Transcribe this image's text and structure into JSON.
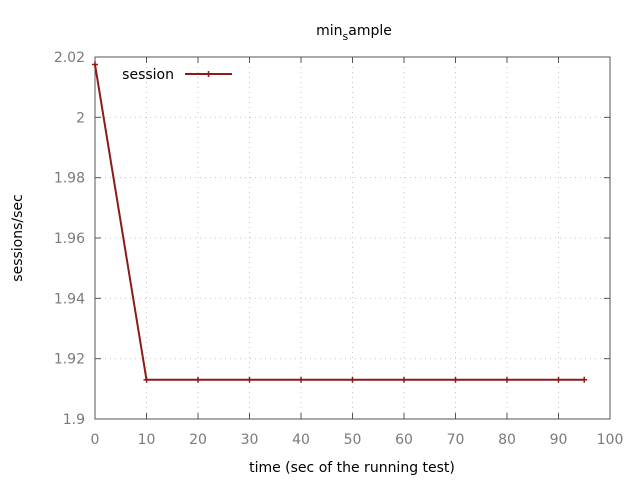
{
  "chart_data": {
    "type": "line",
    "title_main": "min",
    "title_sub": "s",
    "title_rest": "ample",
    "xlabel": "time (sec of the running test)",
    "ylabel": "sessions/sec",
    "xlim": [
      0,
      100
    ],
    "ylim": [
      1.9,
      2.02
    ],
    "xticks": [
      0,
      10,
      20,
      30,
      40,
      50,
      60,
      70,
      80,
      90,
      100
    ],
    "yticks": [
      1.9,
      1.92,
      1.94,
      1.96,
      1.98,
      2,
      2.02
    ],
    "xtick_labels": [
      "0",
      "10",
      "20",
      "30",
      "40",
      "50",
      "60",
      "70",
      "80",
      "90",
      "100"
    ],
    "ytick_labels": [
      "1.9",
      "1.92",
      "1.94",
      "1.96",
      "1.98",
      "2",
      "2.02"
    ],
    "grid": true,
    "legend_position": "top-left",
    "series": [
      {
        "name": "session",
        "color": "#8b1a1a",
        "x": [
          0,
          10,
          20,
          30,
          40,
          50,
          60,
          70,
          80,
          90,
          95
        ],
        "y": [
          2.0175,
          1.913,
          1.913,
          1.913,
          1.913,
          1.913,
          1.913,
          1.913,
          1.913,
          1.913,
          1.913
        ]
      }
    ]
  }
}
